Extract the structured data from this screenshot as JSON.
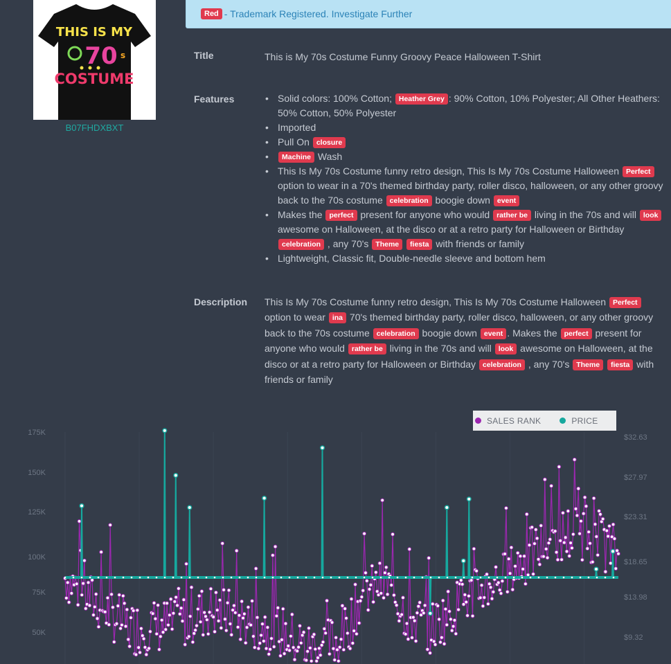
{
  "product": {
    "asin": "B07FHDXBXT",
    "image_alt": "Black t-shirt with colorful 'This is my 70s Costume' print",
    "shirt_text": [
      "THIS IS MY",
      "70",
      "s",
      "COSTUME"
    ]
  },
  "alert": {
    "badge": "Red",
    "message": "- Trademark Registered. Investigate Further"
  },
  "fields": {
    "title_label": "Title",
    "title_value": "This is My 70s Costume Funny Groovy Peace Halloween T-Shirt",
    "features_label": "Features",
    "features": [
      [
        {
          "t": "Solid colors: 100% Cotton; "
        },
        {
          "tag": "Heather Grey"
        },
        {
          "t": ": 90% Cotton, 10% Polyester; All Other Heathers: 50% Cotton, 50% Polyester"
        }
      ],
      [
        {
          "t": "Imported"
        }
      ],
      [
        {
          "t": "Pull On "
        },
        {
          "tag": "closure"
        }
      ],
      [
        {
          "tag": "Machine"
        },
        {
          "t": " Wash"
        }
      ],
      [
        {
          "t": "This Is My 70s Costume funny retro design, This Is My 70s Costume Halloween "
        },
        {
          "tag": "Perfect"
        },
        {
          "t": " option to wear in a 70's themed birthday party, roller disco, halloween, or any other groovy back to the 70s costume "
        },
        {
          "tag": "celebration"
        },
        {
          "t": " boogie down "
        },
        {
          "tag": "event"
        }
      ],
      [
        {
          "t": "Makes the "
        },
        {
          "tag": "perfect"
        },
        {
          "t": " present for anyone who would "
        },
        {
          "tag": "rather be"
        },
        {
          "t": " living in the 70s and will "
        },
        {
          "tag": "look"
        },
        {
          "t": " awesome on Halloween, at the disco or at a retro party for Halloween or Birthday "
        },
        {
          "tag": "celebration"
        },
        {
          "t": " , any 70's "
        },
        {
          "tag": "Theme"
        },
        {
          "t": " "
        },
        {
          "tag": "fiesta"
        },
        {
          "t": " with friends or family"
        }
      ],
      [
        {
          "t": "Lightweight, Classic fit, Double-needle sleeve and bottom hem"
        }
      ]
    ],
    "description_label": "Description",
    "description": [
      {
        "t": "This Is My 70s Costume funny retro design, This Is My 70s Costume Halloween "
      },
      {
        "tag": "Perfect"
      },
      {
        "t": " option to wear "
      },
      {
        "tag": "ina"
      },
      {
        "t": " 70's themed birthday party, roller disco, halloween, or any other groovy back to the 70s costume "
      },
      {
        "tag": "celebration"
      },
      {
        "t": " boogie down "
      },
      {
        "tag": "event"
      },
      {
        "t": ". Makes the "
      },
      {
        "tag": "perfect"
      },
      {
        "t": " present for anyone who would "
      },
      {
        "tag": "rather be"
      },
      {
        "t": " living in the 70s and will "
      },
      {
        "tag": "look"
      },
      {
        "t": " awesome on Halloween, at the disco or at a retro party for Halloween or Birthday "
      },
      {
        "tag": "celebration"
      },
      {
        "t": " , any 70's "
      },
      {
        "tag": "Theme"
      },
      {
        "t": " "
      },
      {
        "tag": "fiesta"
      },
      {
        "t": " with friends or family"
      }
    ]
  },
  "chart_data": {
    "type": "line",
    "legend": [
      {
        "name": "SALES RANK",
        "color": "#9c27b0"
      },
      {
        "name": "PRICE",
        "color": "#16a89e"
      }
    ],
    "y_left_ticks": [
      "175K",
      "150K",
      "125K",
      "100K",
      "75K",
      "50K"
    ],
    "y_left_values": [
      175000,
      150000,
      125000,
      100000,
      75000,
      50000
    ],
    "y_right_ticks": [
      "$32.63",
      "$27.97",
      "$23.31",
      "$18.65",
      "$13.98",
      "$9.32"
    ],
    "y_right_values": [
      32.63,
      27.97,
      23.31,
      18.65,
      13.98,
      9.32
    ],
    "price_baseline": 15.9,
    "price_spikes": [
      [
        0.03,
        24.0
      ],
      [
        0.18,
        32.8
      ],
      [
        0.2,
        27.6
      ],
      [
        0.225,
        23.8
      ],
      [
        0.36,
        24.9
      ],
      [
        0.465,
        30.8
      ],
      [
        0.66,
        11.5
      ],
      [
        0.69,
        23.8
      ],
      [
        0.72,
        18.1
      ],
      [
        0.73,
        24.8
      ],
      [
        0.96,
        17.0
      ],
      [
        0.99,
        19.2
      ]
    ],
    "colors": {
      "sales": "#9c27b0",
      "price": "#16a89e",
      "grid": "#3b4452"
    }
  }
}
